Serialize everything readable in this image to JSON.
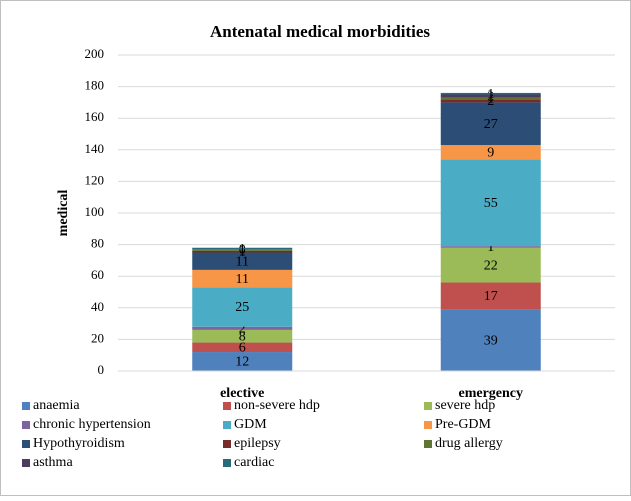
{
  "chart_data": {
    "type": "stacked_bar",
    "title": "Antenatal medical morbidities",
    "y_label": "medical",
    "categories": [
      "elective",
      "emergency"
    ],
    "series": [
      {
        "name": "anaemia",
        "color": "#4f81bd",
        "values": [
          12,
          39
        ]
      },
      {
        "name": "non-severe hdp",
        "color": "#c0504d",
        "values": [
          6,
          17
        ]
      },
      {
        "name": "severe hdp",
        "color": "#9bbb59",
        "values": [
          8,
          22
        ]
      },
      {
        "name": "chronic hypertension",
        "color": "#8064a2",
        "values": [
          2,
          1
        ]
      },
      {
        "name": "GDM",
        "color": "#4bacc6",
        "values": [
          25,
          55
        ]
      },
      {
        "name": "Pre-GDM",
        "color": "#f79646",
        "values": [
          11,
          9
        ]
      },
      {
        "name": "Hypothyroidism",
        "color": "#2c4d75",
        "values": [
          11,
          27
        ]
      },
      {
        "name": "epilepsy",
        "color": "#772c2a",
        "values": [
          1,
          2
        ]
      },
      {
        "name": "drug allergy",
        "color": "#5f7530",
        "values": [
          1,
          1
        ]
      },
      {
        "name": "asthma",
        "color": "#4d3b62",
        "values": [
          0,
          2
        ]
      },
      {
        "name": "cardiac",
        "color": "#276a7c",
        "values": [
          1,
          1
        ]
      }
    ],
    "ylim": [
      0,
      200
    ],
    "yticks": [
      0,
      20,
      40,
      60,
      80,
      100,
      120,
      140,
      160,
      180,
      200
    ],
    "grid": true,
    "legend": "bottom"
  }
}
